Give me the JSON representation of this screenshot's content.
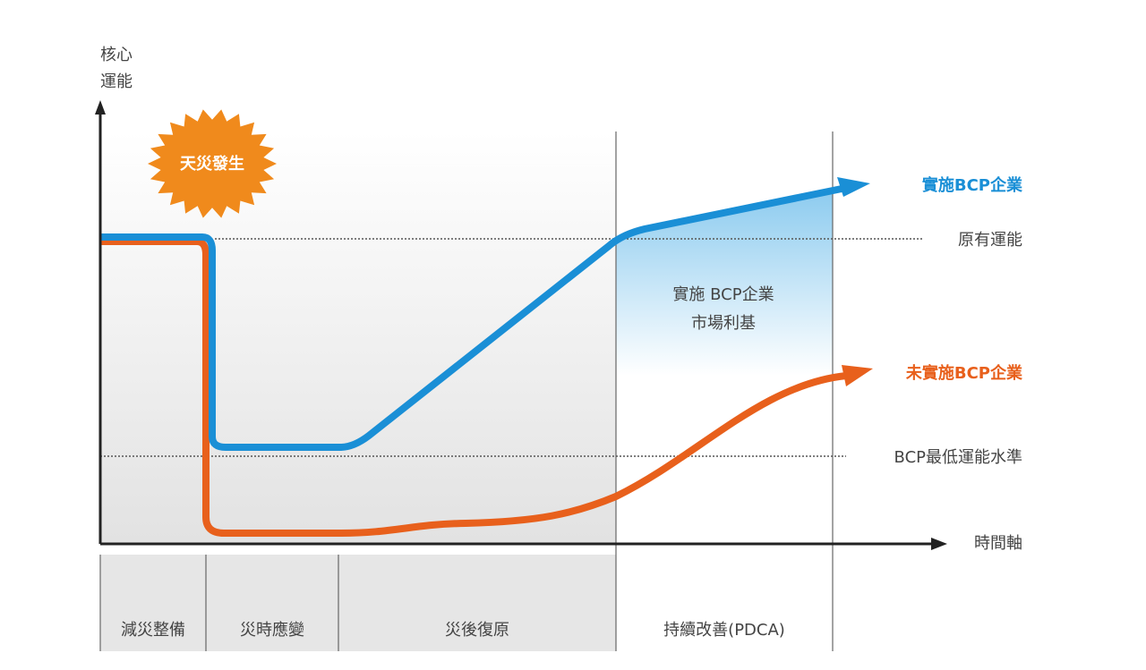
{
  "y_axis_label": [
    "核心",
    "運能"
  ],
  "event": "天災發生",
  "series": {
    "with_bcp": "實施BCP企業",
    "without_bcp": "未實施BCP企業"
  },
  "levels": {
    "original": "原有運能",
    "minimum": "BCP最低運能水準"
  },
  "niche": [
    "實施 BCP企業",
    "市場利基"
  ],
  "x_axis_label": "時間軸",
  "phases": [
    "減災整備",
    "災時應變",
    "災後復原",
    "持續改善(PDCA)"
  ]
}
